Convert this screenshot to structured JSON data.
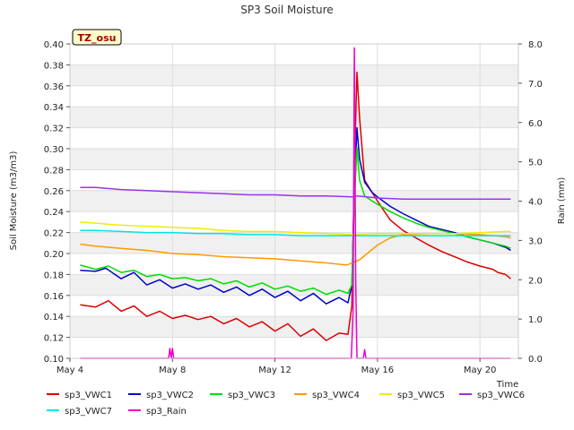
{
  "chart_data": {
    "type": "line",
    "title": "SP3 Soil Moisture",
    "badge": "TZ_osu",
    "xlabel": "Time",
    "ylabel": "Soil Moisture (m3/m3)",
    "y2label": "Rain (mm)",
    "xlim": [
      4,
      21.5
    ],
    "ylim": [
      0.1,
      0.4
    ],
    "y2lim": [
      0.0,
      8.0
    ],
    "x_ticks": [
      4,
      8,
      12,
      16,
      20
    ],
    "x_tick_labels": [
      "May 4",
      "May 8",
      "May 12",
      "May 16",
      "May 20"
    ],
    "y_ticks": [
      0.1,
      0.12,
      0.14,
      0.16,
      0.18,
      0.2,
      0.22,
      0.24,
      0.26,
      0.28,
      0.3,
      0.32,
      0.34,
      0.36,
      0.38,
      0.4
    ],
    "y_tick_labels": [
      "0.10",
      "0.12",
      "0.14",
      "0.16",
      "0.18",
      "0.20",
      "0.22",
      "0.24",
      "0.26",
      "0.28",
      "0.30",
      "0.32",
      "0.34",
      "0.36",
      "0.38",
      "0.40"
    ],
    "y2_ticks": [
      0,
      1,
      2,
      3,
      4,
      5,
      6,
      7,
      8
    ],
    "y2_tick_labels": [
      "0.0",
      "1.0",
      "2.0",
      "3.0",
      "4.0",
      "5.0",
      "6.0",
      "7.0",
      "8.0"
    ],
    "grid": true,
    "legend_position": "bottom",
    "series": [
      {
        "name": "sp3_VWC1",
        "color": "#dd0000",
        "axis": "left",
        "points": [
          [
            4.4,
            0.151
          ],
          [
            5.0,
            0.149
          ],
          [
            5.5,
            0.155
          ],
          [
            6.0,
            0.145
          ],
          [
            6.5,
            0.15
          ],
          [
            7.0,
            0.14
          ],
          [
            7.5,
            0.145
          ],
          [
            8.0,
            0.138
          ],
          [
            8.5,
            0.141
          ],
          [
            9.0,
            0.137
          ],
          [
            9.5,
            0.14
          ],
          [
            10.0,
            0.133
          ],
          [
            10.5,
            0.138
          ],
          [
            11.0,
            0.13
          ],
          [
            11.5,
            0.135
          ],
          [
            12.0,
            0.126
          ],
          [
            12.5,
            0.133
          ],
          [
            13.0,
            0.121
          ],
          [
            13.5,
            0.128
          ],
          [
            14.0,
            0.117
          ],
          [
            14.5,
            0.124
          ],
          [
            14.85,
            0.123
          ],
          [
            15.0,
            0.15
          ],
          [
            15.1,
            0.28
          ],
          [
            15.2,
            0.373
          ],
          [
            15.3,
            0.33
          ],
          [
            15.5,
            0.27
          ],
          [
            15.8,
            0.258
          ],
          [
            16.0,
            0.25
          ],
          [
            16.5,
            0.232
          ],
          [
            17.0,
            0.222
          ],
          [
            17.5,
            0.215
          ],
          [
            18.0,
            0.208
          ],
          [
            18.5,
            0.202
          ],
          [
            19.0,
            0.197
          ],
          [
            19.5,
            0.192
          ],
          [
            20.0,
            0.188
          ],
          [
            20.5,
            0.185
          ],
          [
            20.7,
            0.182
          ],
          [
            21.0,
            0.18
          ],
          [
            21.2,
            0.176
          ]
        ]
      },
      {
        "name": "sp3_VWC2",
        "color": "#0000cc",
        "axis": "left",
        "points": [
          [
            4.4,
            0.184
          ],
          [
            5.0,
            0.183
          ],
          [
            5.4,
            0.186
          ],
          [
            6.0,
            0.176
          ],
          [
            6.5,
            0.182
          ],
          [
            7.0,
            0.17
          ],
          [
            7.5,
            0.175
          ],
          [
            8.0,
            0.167
          ],
          [
            8.5,
            0.171
          ],
          [
            9.0,
            0.166
          ],
          [
            9.5,
            0.17
          ],
          [
            10.0,
            0.163
          ],
          [
            10.5,
            0.168
          ],
          [
            11.0,
            0.16
          ],
          [
            11.5,
            0.166
          ],
          [
            12.0,
            0.158
          ],
          [
            12.5,
            0.164
          ],
          [
            13.0,
            0.155
          ],
          [
            13.5,
            0.162
          ],
          [
            14.0,
            0.152
          ],
          [
            14.5,
            0.158
          ],
          [
            14.85,
            0.153
          ],
          [
            15.0,
            0.17
          ],
          [
            15.1,
            0.26
          ],
          [
            15.2,
            0.32
          ],
          [
            15.3,
            0.29
          ],
          [
            15.5,
            0.268
          ],
          [
            15.8,
            0.258
          ],
          [
            16.0,
            0.254
          ],
          [
            16.5,
            0.245
          ],
          [
            17.0,
            0.238
          ],
          [
            17.5,
            0.232
          ],
          [
            18.0,
            0.226
          ],
          [
            18.5,
            0.223
          ],
          [
            19.0,
            0.22
          ],
          [
            19.5,
            0.216
          ],
          [
            20.0,
            0.213
          ],
          [
            20.5,
            0.21
          ],
          [
            21.0,
            0.206
          ],
          [
            21.2,
            0.203
          ]
        ]
      },
      {
        "name": "sp3_VWC3",
        "color": "#00dd00",
        "axis": "left",
        "points": [
          [
            4.4,
            0.189
          ],
          [
            5.0,
            0.185
          ],
          [
            5.5,
            0.188
          ],
          [
            6.0,
            0.182
          ],
          [
            6.5,
            0.184
          ],
          [
            7.0,
            0.178
          ],
          [
            7.5,
            0.18
          ],
          [
            8.0,
            0.176
          ],
          [
            8.5,
            0.177
          ],
          [
            9.0,
            0.174
          ],
          [
            9.5,
            0.176
          ],
          [
            10.0,
            0.171
          ],
          [
            10.5,
            0.174
          ],
          [
            11.0,
            0.168
          ],
          [
            11.5,
            0.172
          ],
          [
            12.0,
            0.166
          ],
          [
            12.5,
            0.169
          ],
          [
            13.0,
            0.164
          ],
          [
            13.5,
            0.167
          ],
          [
            14.0,
            0.161
          ],
          [
            14.5,
            0.165
          ],
          [
            14.85,
            0.162
          ],
          [
            15.0,
            0.17
          ],
          [
            15.1,
            0.25
          ],
          [
            15.2,
            0.301
          ],
          [
            15.3,
            0.27
          ],
          [
            15.5,
            0.255
          ],
          [
            15.8,
            0.25
          ],
          [
            16.0,
            0.247
          ],
          [
            16.5,
            0.24
          ],
          [
            17.0,
            0.234
          ],
          [
            17.5,
            0.229
          ],
          [
            18.0,
            0.225
          ],
          [
            18.5,
            0.222
          ],
          [
            19.0,
            0.219
          ],
          [
            19.5,
            0.216
          ],
          [
            20.0,
            0.213
          ],
          [
            20.5,
            0.21
          ],
          [
            21.0,
            0.207
          ],
          [
            21.2,
            0.205
          ]
        ]
      },
      {
        "name": "sp3_VWC4",
        "color": "#ff9900",
        "axis": "left",
        "points": [
          [
            4.4,
            0.209
          ],
          [
            5.0,
            0.207
          ],
          [
            6.0,
            0.205
          ],
          [
            7.0,
            0.203
          ],
          [
            8.0,
            0.2
          ],
          [
            9.0,
            0.199
          ],
          [
            10.0,
            0.197
          ],
          [
            11.0,
            0.196
          ],
          [
            12.0,
            0.195
          ],
          [
            13.0,
            0.193
          ],
          [
            14.0,
            0.191
          ],
          [
            14.8,
            0.189
          ],
          [
            15.0,
            0.191
          ],
          [
            15.3,
            0.194
          ],
          [
            15.6,
            0.2
          ],
          [
            16.0,
            0.208
          ],
          [
            16.5,
            0.215
          ],
          [
            17.0,
            0.218
          ],
          [
            18.0,
            0.219
          ],
          [
            19.0,
            0.219
          ],
          [
            20.0,
            0.218
          ],
          [
            21.0,
            0.216
          ],
          [
            21.2,
            0.215
          ]
        ]
      },
      {
        "name": "sp3_VWC5",
        "color": "#eeee00",
        "axis": "left",
        "points": [
          [
            4.4,
            0.23
          ],
          [
            5.0,
            0.229
          ],
          [
            6.0,
            0.227
          ],
          [
            7.0,
            0.226
          ],
          [
            8.0,
            0.225
          ],
          [
            9.0,
            0.224
          ],
          [
            10.0,
            0.222
          ],
          [
            11.0,
            0.221
          ],
          [
            12.0,
            0.221
          ],
          [
            13.0,
            0.22
          ],
          [
            14.0,
            0.219
          ],
          [
            15.0,
            0.218
          ],
          [
            16.0,
            0.219
          ],
          [
            17.0,
            0.219
          ],
          [
            18.0,
            0.219
          ],
          [
            19.0,
            0.219
          ],
          [
            20.0,
            0.22
          ],
          [
            21.0,
            0.221
          ],
          [
            21.2,
            0.221
          ]
        ]
      },
      {
        "name": "sp3_VWC6",
        "color": "#9933ee",
        "axis": "left",
        "points": [
          [
            4.4,
            0.263
          ],
          [
            5.0,
            0.263
          ],
          [
            6.0,
            0.261
          ],
          [
            7.0,
            0.26
          ],
          [
            8.0,
            0.259
          ],
          [
            9.0,
            0.258
          ],
          [
            10.0,
            0.257
          ],
          [
            11.0,
            0.256
          ],
          [
            12.0,
            0.256
          ],
          [
            13.0,
            0.255
          ],
          [
            14.0,
            0.255
          ],
          [
            15.0,
            0.254
          ],
          [
            15.2,
            0.255
          ],
          [
            16.0,
            0.253
          ],
          [
            17.0,
            0.252
          ],
          [
            18.0,
            0.252
          ],
          [
            19.0,
            0.252
          ],
          [
            20.0,
            0.252
          ],
          [
            21.0,
            0.252
          ],
          [
            21.2,
            0.252
          ]
        ]
      },
      {
        "name": "sp3_VWC7",
        "color": "#00e5e5",
        "axis": "left",
        "points": [
          [
            4.4,
            0.222
          ],
          [
            5.0,
            0.222
          ],
          [
            6.0,
            0.221
          ],
          [
            7.0,
            0.22
          ],
          [
            8.0,
            0.22
          ],
          [
            9.0,
            0.219
          ],
          [
            10.0,
            0.219
          ],
          [
            11.0,
            0.218
          ],
          [
            12.0,
            0.218
          ],
          [
            13.0,
            0.217
          ],
          [
            14.0,
            0.217
          ],
          [
            15.0,
            0.217
          ],
          [
            16.0,
            0.217
          ],
          [
            17.0,
            0.217
          ],
          [
            18.0,
            0.217
          ],
          [
            19.0,
            0.217
          ],
          [
            20.0,
            0.217
          ],
          [
            21.0,
            0.217
          ],
          [
            21.2,
            0.217
          ]
        ]
      },
      {
        "name": "sp3_Rain",
        "color": "#ee00cc",
        "axis": "right",
        "points": [
          [
            4.4,
            0.0
          ],
          [
            7.85,
            0.0
          ],
          [
            7.9,
            0.25
          ],
          [
            7.95,
            0.0
          ],
          [
            8.0,
            0.25
          ],
          [
            8.05,
            0.0
          ],
          [
            14.98,
            0.0
          ],
          [
            15.05,
            1.2
          ],
          [
            15.1,
            7.9
          ],
          [
            15.15,
            2.0
          ],
          [
            15.2,
            0.0
          ],
          [
            15.45,
            0.0
          ],
          [
            15.5,
            0.22
          ],
          [
            15.55,
            0.0
          ],
          [
            21.2,
            0.0
          ]
        ]
      }
    ]
  }
}
